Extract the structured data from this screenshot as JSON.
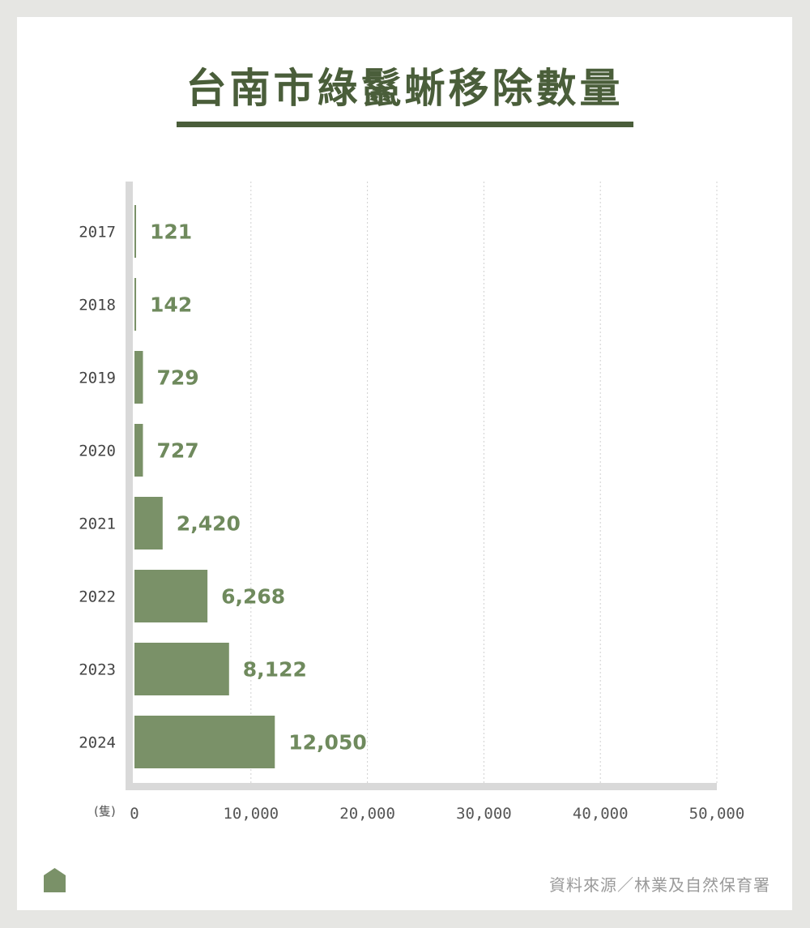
{
  "title": "台南市綠鬣蜥移除數量",
  "unit": "(隻)",
  "source": "資料來源／林業及自然保育署",
  "icon": "house-icon",
  "colors": {
    "bar": "#7a9168",
    "value_text": "#6f8a5d",
    "title": "#4a5e3a",
    "axis": "#d9d9d9",
    "grid": "#d0d0d0"
  },
  "chart_data": {
    "type": "bar",
    "orientation": "horizontal",
    "title": "台南市綠鬣蜥移除數量",
    "categories": [
      "2017",
      "2018",
      "2019",
      "2020",
      "2021",
      "2022",
      "2023",
      "2024"
    ],
    "values": [
      121,
      142,
      729,
      727,
      2420,
      6268,
      8122,
      12050
    ],
    "value_labels": [
      "121",
      "142",
      "729",
      "727",
      "2,420",
      "6,268",
      "8,122",
      "12,050"
    ],
    "xlim": [
      0,
      50000
    ],
    "x_ticks": [
      0,
      10000,
      20000,
      30000,
      40000,
      50000
    ],
    "x_tick_labels": [
      "0",
      "10,000",
      "20,000",
      "30,000",
      "40,000",
      "50,000"
    ],
    "xlabel": "(隻)",
    "grid": "vertical-dotted"
  }
}
